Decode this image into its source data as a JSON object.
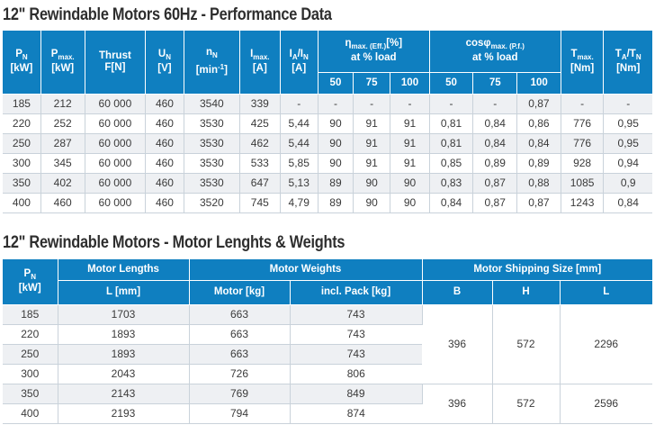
{
  "performance": {
    "title": "12\" Rewindable Motors 60Hz - Performance Data",
    "headers": {
      "pn": {
        "main": "P",
        "sub": "N",
        "unit": "[kW]"
      },
      "pmax": {
        "main": "P",
        "sub": "max.",
        "unit": "[kW]"
      },
      "thrust": {
        "main": "Thrust",
        "unit": "F[N]"
      },
      "un": {
        "main": "U",
        "sub": "N",
        "unit": "[V]"
      },
      "nn": {
        "main": "n",
        "sub": "N",
        "unit": "[min",
        "unit_sup": "-1",
        "unit_end": "]"
      },
      "in": {
        "main": "I",
        "sub": "max.",
        "unit": "[A]"
      },
      "iain": {
        "main": "I",
        "sub": "A",
        "mid": "/I",
        "sub2": "N",
        "unit": "[A]"
      },
      "eff": {
        "main": "η",
        "sub": "max. (Eff.)",
        "suffix": "[%]",
        "line2": "at % load"
      },
      "pf": {
        "main": "cosφ",
        "sub": "max. (P.f.)",
        "line2": "at % load"
      },
      "tmax": {
        "main": "T",
        "sub": "max.",
        "unit": "[Nm]"
      },
      "tatn": {
        "main": "T",
        "sub": "A",
        "mid": "/T",
        "sub2": "N",
        "unit": "[Nm]"
      },
      "load_points": [
        "50",
        "75",
        "100",
        "50",
        "75",
        "100"
      ]
    },
    "rows": [
      [
        "185",
        "212",
        "60 000",
        "460",
        "3540",
        "339",
        "-",
        "-",
        "-",
        "-",
        "-",
        "-",
        "0,87",
        "-",
        "-"
      ],
      [
        "220",
        "252",
        "60 000",
        "460",
        "3530",
        "425",
        "5,44",
        "90",
        "91",
        "91",
        "0,81",
        "0,84",
        "0,86",
        "776",
        "0,95"
      ],
      [
        "250",
        "287",
        "60 000",
        "460",
        "3530",
        "462",
        "5,44",
        "90",
        "91",
        "91",
        "0,81",
        "0,84",
        "0,84",
        "776",
        "0,95"
      ],
      [
        "300",
        "345",
        "60 000",
        "460",
        "3530",
        "533",
        "5,85",
        "90",
        "91",
        "91",
        "0,85",
        "0,89",
        "0,89",
        "928",
        "0,94"
      ],
      [
        "350",
        "402",
        "60 000",
        "460",
        "3530",
        "647",
        "5,13",
        "89",
        "90",
        "90",
        "0,83",
        "0,87",
        "0,88",
        "1085",
        "0,9"
      ],
      [
        "400",
        "460",
        "60 000",
        "460",
        "3520",
        "745",
        "4,79",
        "89",
        "90",
        "90",
        "0,84",
        "0,87",
        "0,87",
        "1243",
        "0,84"
      ]
    ]
  },
  "lengths_weights": {
    "title": "12\" Rewindable Motors - Motor Lenghts & Weights",
    "headers": {
      "pn": {
        "main": "P",
        "sub": "N",
        "unit": "[kW]"
      },
      "motor_lengths": "Motor Lengths",
      "l_mm": "L [mm]",
      "motor_weights": "Motor Weights",
      "motor_kg": "Motor [kg]",
      "incl_pack": "incl. Pack [kg]",
      "shipping": "Motor Shipping Size [mm]",
      "b": "B",
      "h": "H",
      "l": "L"
    },
    "rows": [
      {
        "pn": "185",
        "l": "1703",
        "motor": "663",
        "pack": "743"
      },
      {
        "pn": "220",
        "l": "1893",
        "motor": "663",
        "pack": "743"
      },
      {
        "pn": "250",
        "l": "1893",
        "motor": "663",
        "pack": "743"
      },
      {
        "pn": "300",
        "l": "2043",
        "motor": "726",
        "pack": "806"
      },
      {
        "pn": "350",
        "l": "2143",
        "motor": "769",
        "pack": "849"
      },
      {
        "pn": "400",
        "l": "2193",
        "motor": "794",
        "pack": "874"
      }
    ],
    "shipping_groups": [
      {
        "b": "396",
        "h": "572",
        "l": "2296"
      },
      {
        "b": "396",
        "h": "572",
        "l": "2596"
      }
    ]
  }
}
